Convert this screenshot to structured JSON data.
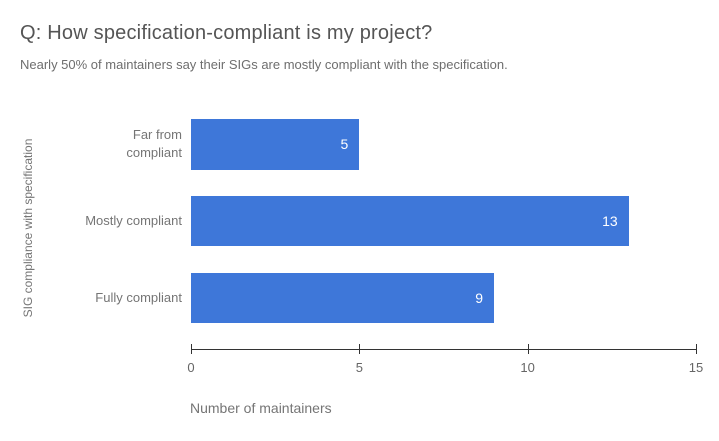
{
  "chart_data": {
    "type": "bar",
    "orientation": "horizontal",
    "title": "Q: How specification-compliant is my project?",
    "subtitle": "Nearly 50% of maintainers say their SIGs are mostly compliant with the specification.",
    "categories": [
      "Far from\ncompliant",
      "Mostly compliant",
      "Fully compliant"
    ],
    "values": [
      5,
      13,
      9
    ],
    "value_labels": [
      "5",
      "13",
      "9"
    ],
    "xlabel": "Number of maintainers",
    "ylabel": "SIG compliance with specification",
    "x_ticks": [
      0,
      5,
      10,
      15
    ],
    "x_tick_labels": [
      "0",
      "5",
      "10",
      "15"
    ],
    "xlim": [
      0,
      15
    ],
    "grid": false,
    "legend": "none",
    "bar_color": "#3e77d9",
    "value_label_color": "#ffffff"
  }
}
